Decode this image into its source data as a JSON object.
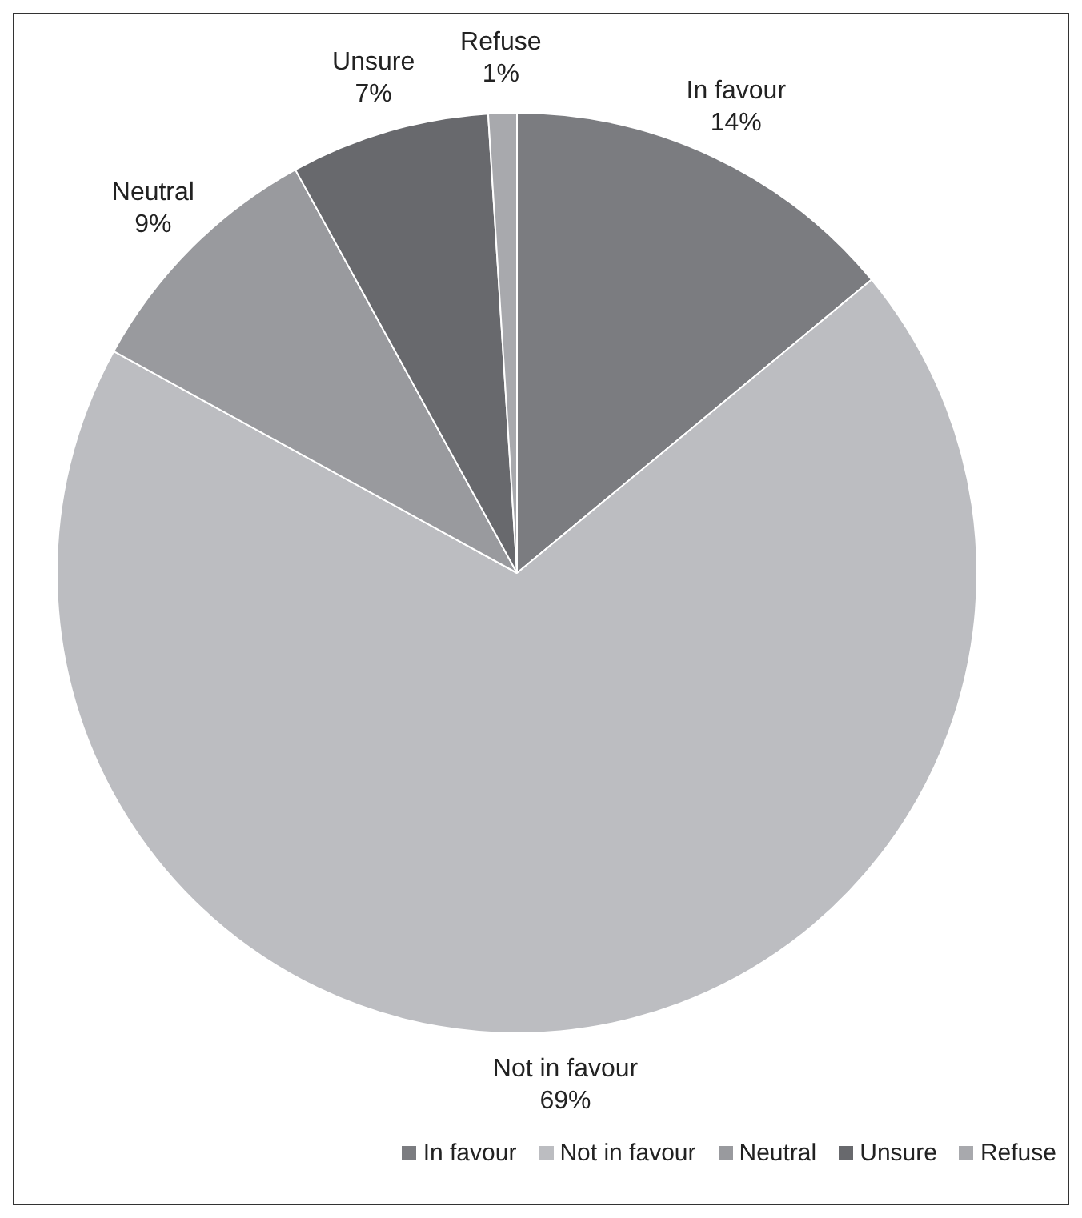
{
  "chart_data": {
    "type": "pie",
    "categories": [
      "In favour",
      "Not in favour",
      "Neutral",
      "Unsure",
      "Refuse"
    ],
    "values": [
      14,
      69,
      9,
      7,
      1
    ],
    "value_labels": [
      "14%",
      "69%",
      "9%",
      "7%",
      "1%"
    ],
    "colors": [
      "#7b7c80",
      "#bcbdc1",
      "#999a9e",
      "#68696d",
      "#a8a9ad"
    ],
    "legend": "bottom"
  }
}
